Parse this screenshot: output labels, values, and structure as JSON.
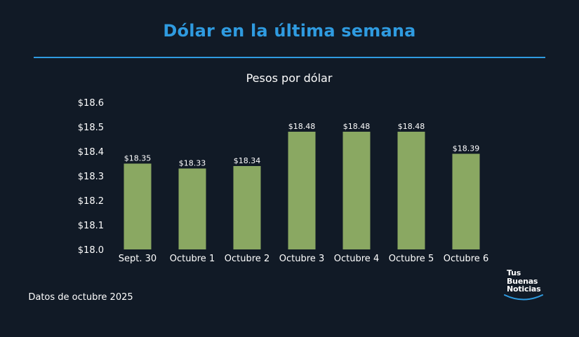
{
  "title": "Dólar en la última semana",
  "footer_note": "Datos de octubre 2025",
  "logo": {
    "line1": "Tus",
    "line2": "Buenas",
    "line3": "Noticias"
  },
  "colors": {
    "accent": "#2f9be0",
    "bar": "#8aa862",
    "background": "#111a26"
  },
  "chart_data": {
    "type": "bar",
    "title": "Pesos por dólar",
    "categories": [
      "Sept. 30",
      "Octubre 1",
      "Octubre 2",
      "Octubre 3",
      "Octubre 4",
      "Octubre 5",
      "Octubre 6"
    ],
    "values": [
      18.35,
      18.33,
      18.34,
      18.48,
      18.48,
      18.48,
      18.39
    ],
    "data_labels": [
      "$18.35",
      "$18.33",
      "$18.34",
      "$18.48",
      "$18.48",
      "$18.48",
      "$18.39"
    ],
    "yticks": [
      18.0,
      18.1,
      18.2,
      18.3,
      18.4,
      18.5,
      18.6
    ],
    "ytick_labels": [
      "$18.0",
      "$18.1",
      "$18.2",
      "$18.3",
      "$18.4",
      "$18.5",
      "$18.6"
    ],
    "ylim": [
      18.0,
      18.6
    ],
    "xlabel": "",
    "ylabel": "",
    "grid": false,
    "legend": "none"
  }
}
